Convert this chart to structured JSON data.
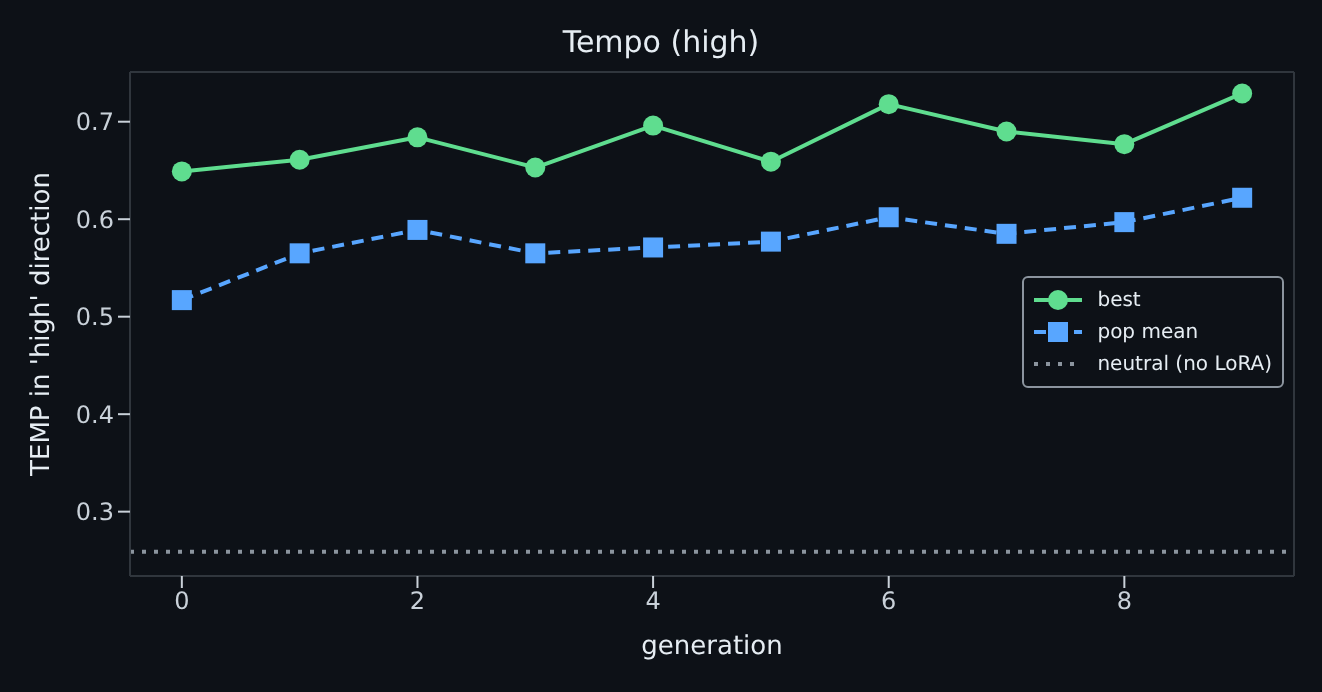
{
  "chart_data": {
    "type": "line",
    "title": "Tempo (high)",
    "xlabel": "generation",
    "ylabel": "TEMP in 'high' direction",
    "x": [
      0,
      1,
      2,
      3,
      4,
      5,
      6,
      7,
      8,
      9
    ],
    "series": [
      {
        "name": "best",
        "color": "#5fdd8f",
        "marker": "circle",
        "line_style": "solid",
        "values": [
          0.649,
          0.661,
          0.684,
          0.653,
          0.696,
          0.659,
          0.718,
          0.69,
          0.677,
          0.729
        ]
      },
      {
        "name": "pop mean",
        "color": "#58a6ff",
        "marker": "square",
        "line_style": "dashed",
        "values": [
          0.517,
          0.565,
          0.589,
          0.565,
          0.571,
          0.577,
          0.602,
          0.585,
          0.597,
          0.622
        ]
      }
    ],
    "ref_lines": [
      {
        "axis": "y",
        "value": 0.259,
        "label": "neutral (no LoRA)",
        "color": "#8b949e",
        "line_style": "dotted"
      }
    ],
    "xlim": [
      -0.44,
      9.44
    ],
    "xticks": [
      0,
      2,
      4,
      6,
      8
    ],
    "ylim": [
      0.234,
      0.751
    ],
    "yticks": [
      0.3,
      0.4,
      0.5,
      0.6,
      0.7
    ],
    "grid": false,
    "legend": "right"
  }
}
